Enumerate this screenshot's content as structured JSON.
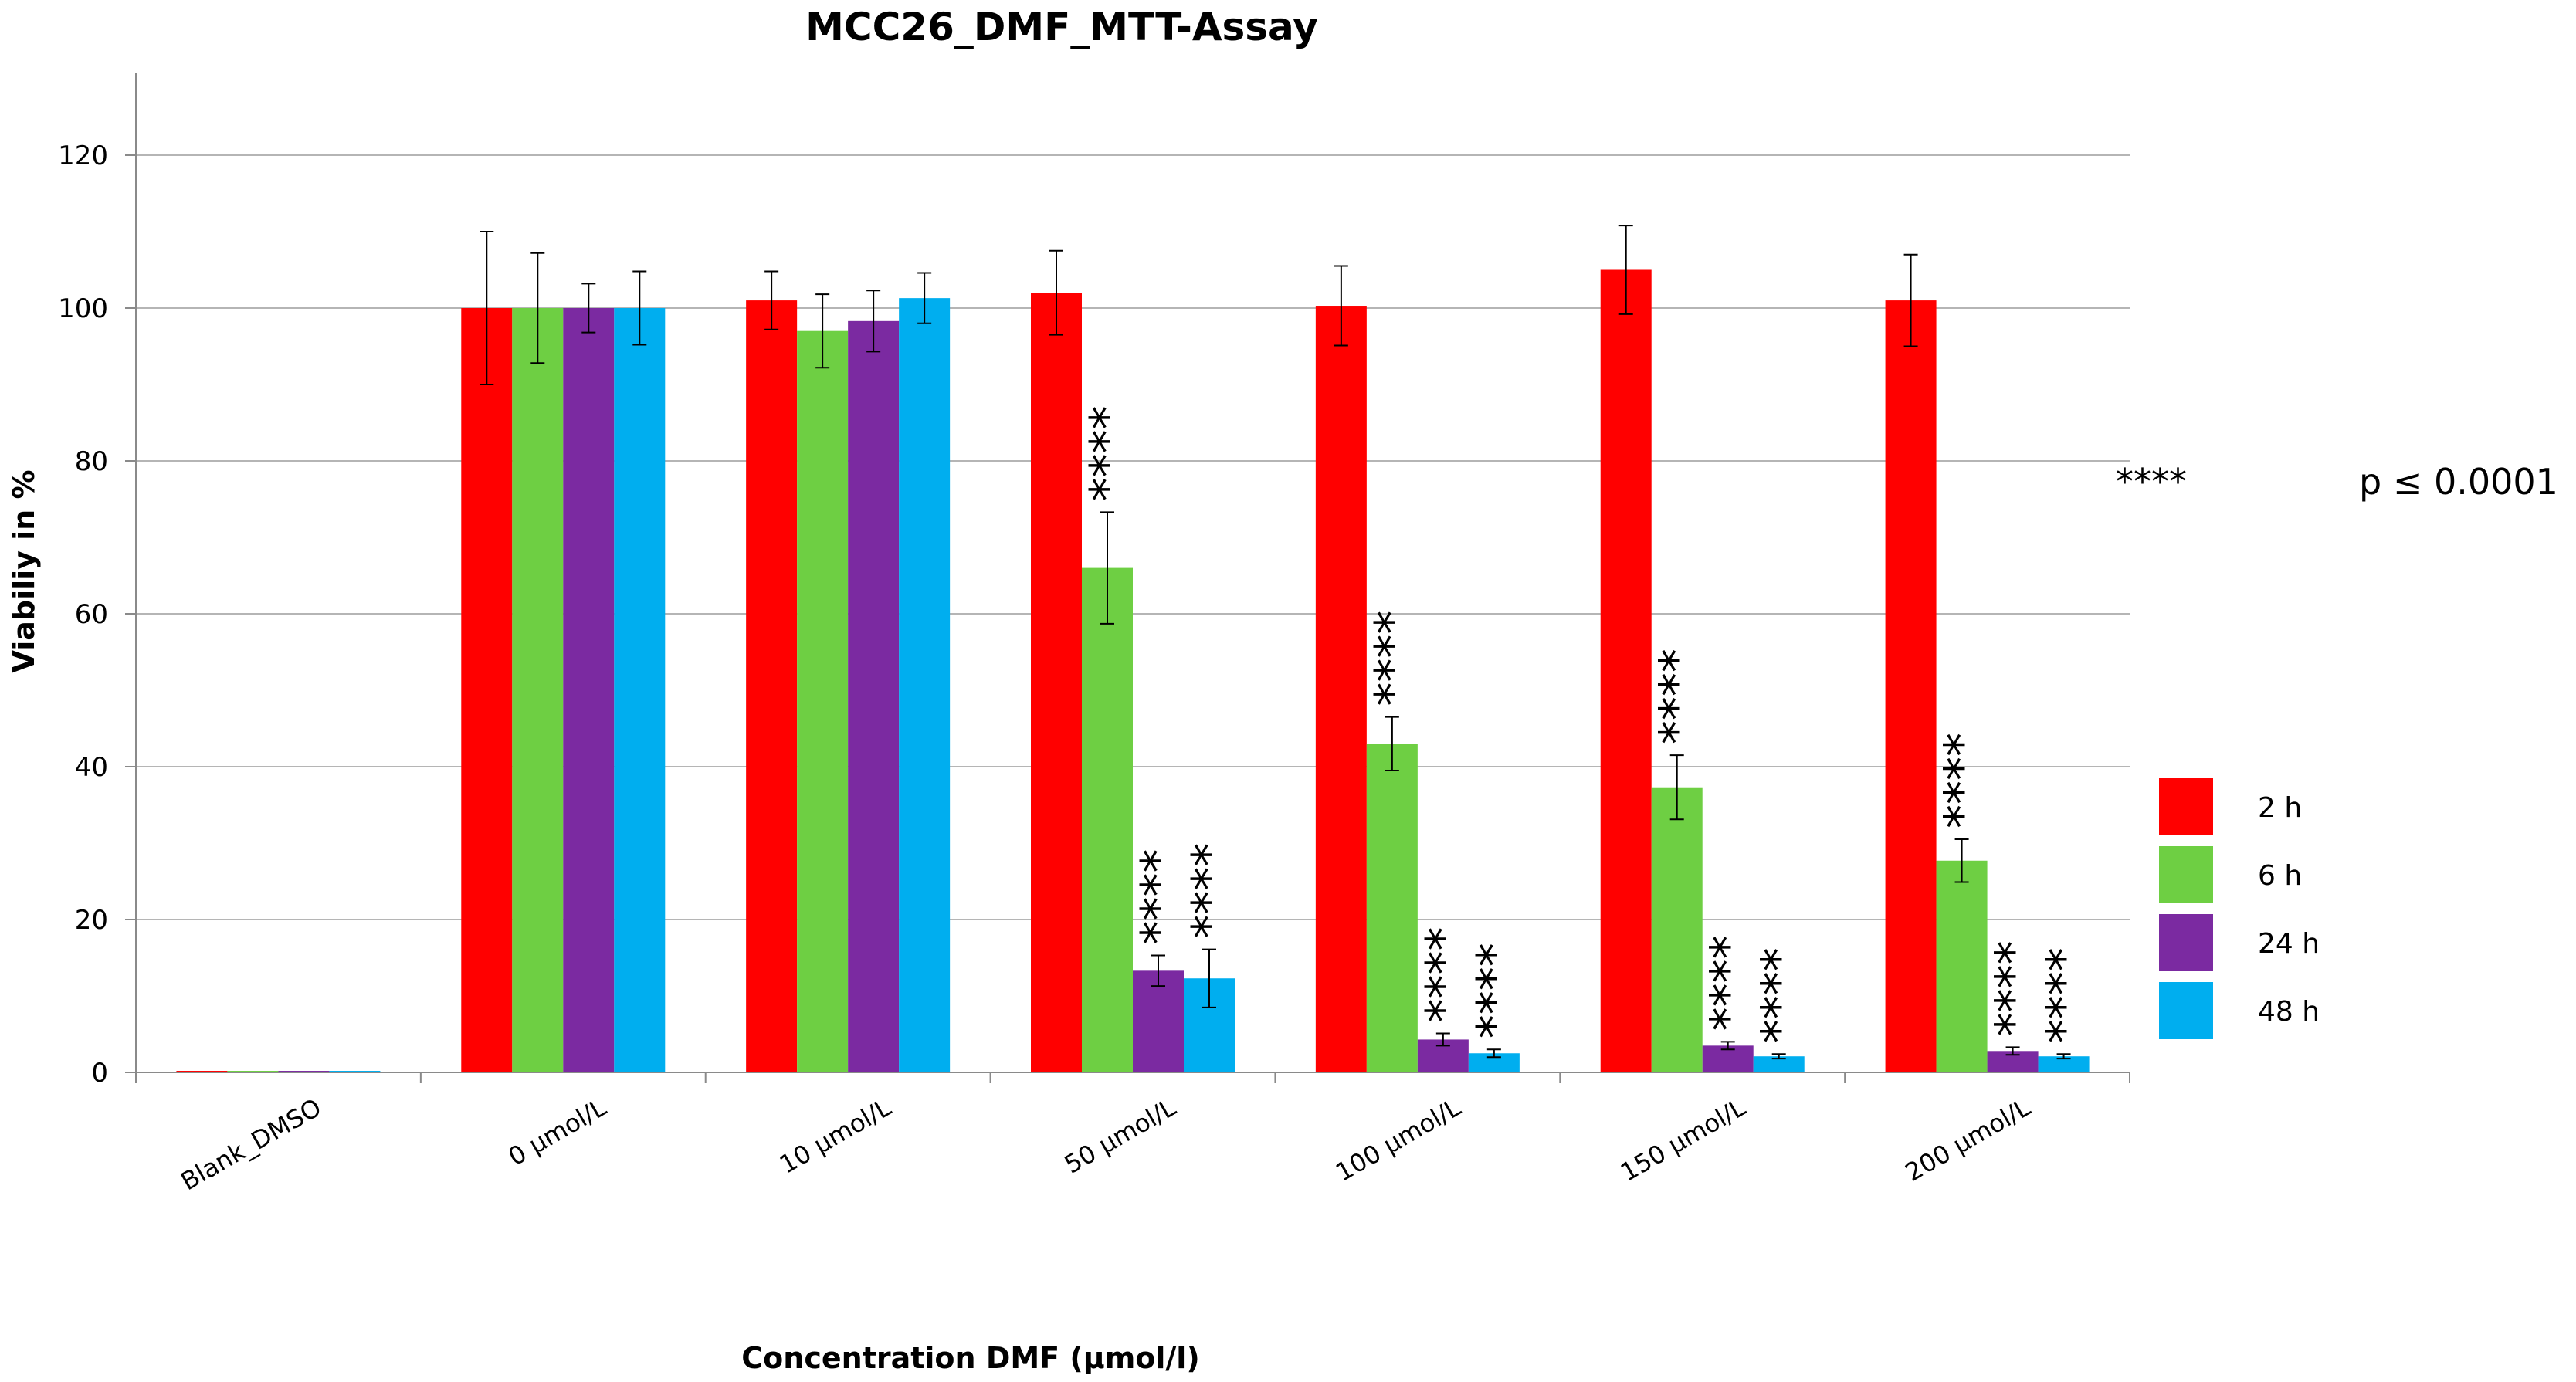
{
  "chart_data": {
    "type": "bar",
    "title": "MCC26_DMF_MTT-Assay",
    "xlabel": "Concentration DMF (µmol/l)",
    "ylabel": "Viabiliy in %",
    "ylim": [
      0,
      130
    ],
    "yticks": [
      0,
      20,
      40,
      60,
      80,
      100,
      120
    ],
    "grid": true,
    "legend_position": "right",
    "categories": [
      "Blank_DMSO",
      "0 µmol/L",
      "10 µmol/L",
      "50 µmol/L",
      "100 µmol/L",
      "150 µmol/L",
      "200 µmol/L"
    ],
    "series": [
      {
        "name": "2 h",
        "color": "#ff0000",
        "values": [
          0.2,
          100,
          101,
          102,
          100.3,
          105,
          101
        ],
        "errors": [
          0,
          10,
          3.8,
          5.5,
          5.2,
          5.8,
          6
        ]
      },
      {
        "name": "6 h",
        "color": "#6ecf43",
        "values": [
          0.2,
          100,
          97,
          66,
          43,
          37.3,
          27.7
        ],
        "errors": [
          0,
          7.2,
          4.8,
          7.3,
          3.5,
          4.2,
          2.8
        ]
      },
      {
        "name": "24 h",
        "color": "#7b2aa1",
        "values": [
          0.2,
          100,
          98.3,
          13.3,
          4.3,
          3.5,
          2.8
        ],
        "errors": [
          0,
          3.2,
          4,
          2,
          0.8,
          0.5,
          0.5
        ]
      },
      {
        "name": "48 h",
        "color": "#00aeef",
        "values": [
          0.2,
          100,
          101.3,
          12.3,
          2.5,
          2.1,
          2.1
        ],
        "errors": [
          0,
          4.8,
          3.3,
          3.8,
          0.5,
          0.3,
          0.3
        ]
      }
    ],
    "significance": {
      "label": "****",
      "marks": [
        {
          "category": 3,
          "series": 1
        },
        {
          "category": 3,
          "series": 2
        },
        {
          "category": 3,
          "series": 3
        },
        {
          "category": 4,
          "series": 1
        },
        {
          "category": 4,
          "series": 2
        },
        {
          "category": 4,
          "series": 3
        },
        {
          "category": 5,
          "series": 1
        },
        {
          "category": 5,
          "series": 2
        },
        {
          "category": 5,
          "series": 3
        },
        {
          "category": 6,
          "series": 1
        },
        {
          "category": 6,
          "series": 2
        },
        {
          "category": 6,
          "series": 3
        }
      ]
    },
    "note": {
      "stars": "****",
      "text": "p ≤ 0.0001"
    }
  }
}
